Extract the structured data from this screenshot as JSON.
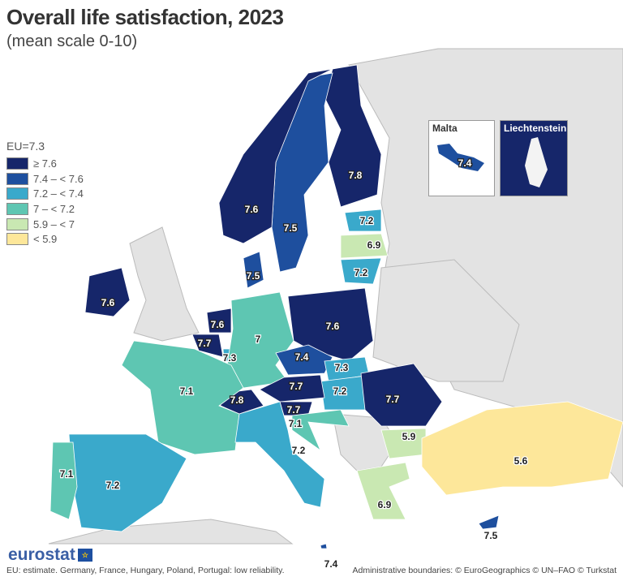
{
  "title": "Overall life satisfaction, 2023",
  "subtitle": "(mean scale 0-10)",
  "legend": {
    "eu": "EU=7.3",
    "classes": [
      {
        "label": "≥ 7.6",
        "color": "#16266a"
      },
      {
        "label": "7.4 – < 7.6",
        "color": "#1e4f9e"
      },
      {
        "label": "7.2 – < 7.4",
        "color": "#3aa9cb"
      },
      {
        "label": "7 – < 7.2",
        "color": "#5ec6b2"
      },
      {
        "label": "5.9 – < 7",
        "color": "#c9e8b2"
      },
      {
        "label": "< 5.9",
        "color": "#fde79a"
      }
    ]
  },
  "countries": [
    {
      "name": "Finland",
      "value": "7.8"
    },
    {
      "name": "Sweden",
      "value": "7.5"
    },
    {
      "name": "Norway",
      "value": "7.6"
    },
    {
      "name": "Estonia",
      "value": "7.2"
    },
    {
      "name": "Latvia",
      "value": "6.9"
    },
    {
      "name": "Lithuania",
      "value": "7.2"
    },
    {
      "name": "Denmark",
      "value": "7.5"
    },
    {
      "name": "Ireland",
      "value": "7.6"
    },
    {
      "name": "Netherlands",
      "value": "7.6"
    },
    {
      "name": "Belgium",
      "value": "7.7"
    },
    {
      "name": "Luxembourg",
      "value": "7.3"
    },
    {
      "name": "Germany",
      "value": "7"
    },
    {
      "name": "Poland",
      "value": "7.6"
    },
    {
      "name": "Czechia",
      "value": "7.4"
    },
    {
      "name": "Slovakia",
      "value": "7.3"
    },
    {
      "name": "Hungary",
      "value": "7.2"
    },
    {
      "name": "Austria",
      "value": "7.7"
    },
    {
      "name": "Switzerland",
      "value": "7.8"
    },
    {
      "name": "Slovenia",
      "value": "7.7"
    },
    {
      "name": "Croatia",
      "value": "7.1"
    },
    {
      "name": "France",
      "value": "7.1"
    },
    {
      "name": "Italy",
      "value": "7.2"
    },
    {
      "name": "Spain",
      "value": "7.2"
    },
    {
      "name": "Portugal",
      "value": "7.1"
    },
    {
      "name": "Romania",
      "value": "7.7"
    },
    {
      "name": "Bulgaria",
      "value": "5.9"
    },
    {
      "name": "Greece",
      "value": "6.9"
    },
    {
      "name": "Türkiye",
      "value": "5.6"
    },
    {
      "name": "Cyprus",
      "value": "7.5"
    },
    {
      "name": "Malta",
      "value": "7.4"
    }
  ],
  "insets": {
    "malta": {
      "title": "Malta",
      "value": "7.4"
    },
    "liechtenstein": {
      "title": "Liechtenstein"
    }
  },
  "logo": "eurostat",
  "note": "EU: estimate. Germany, France, Hungary, Poland, Portugal: low reliability.",
  "credits": "Administrative boundaries: © EuroGeographics © UN–FAO © Turkstat"
}
